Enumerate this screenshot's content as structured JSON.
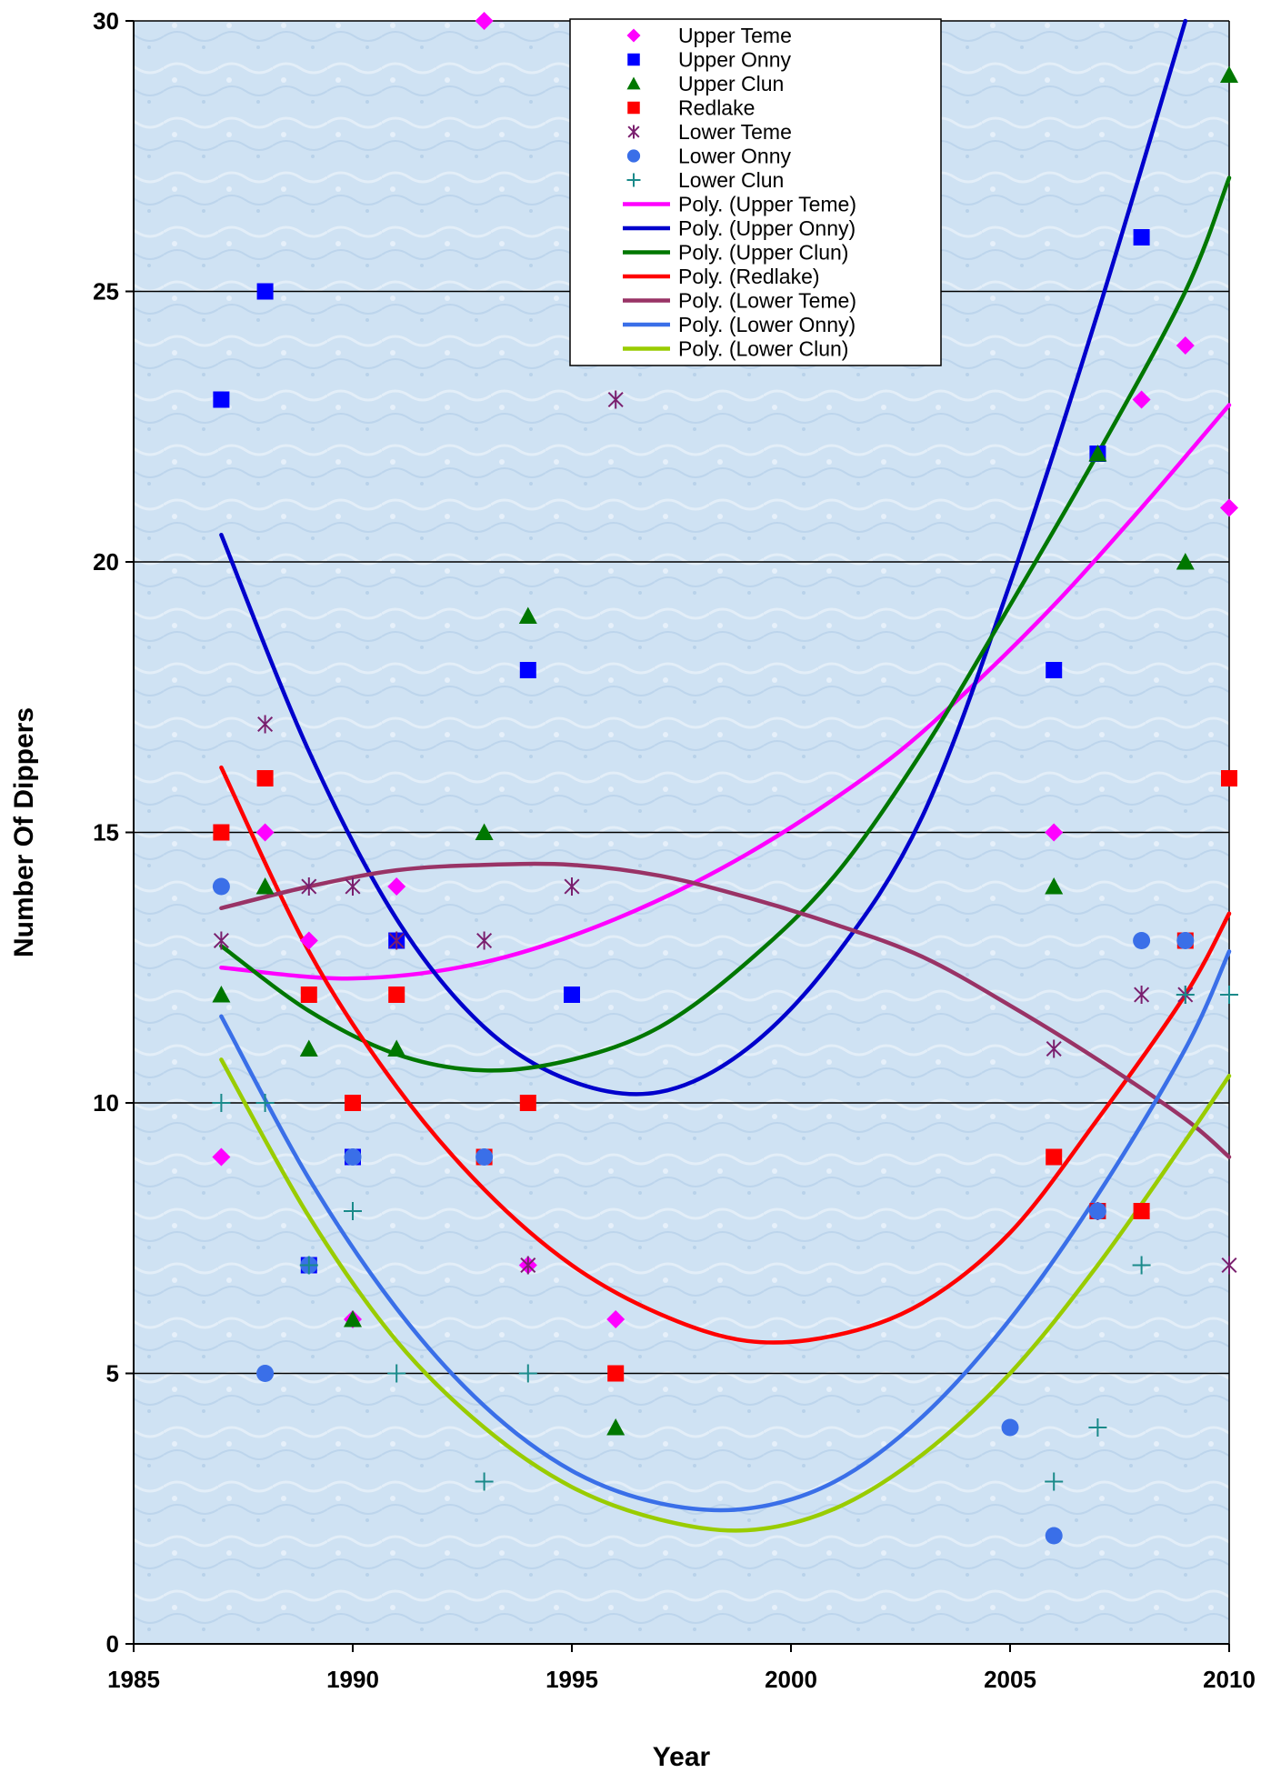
{
  "chart_data": {
    "type": "scatter",
    "title": "",
    "xlabel": "Year",
    "ylabel": "Number Of Dippers",
    "xlim": [
      1985,
      2010
    ],
    "ylim": [
      0,
      30
    ],
    "x_ticks": [
      1985,
      1990,
      1995,
      2000,
      2005,
      2010
    ],
    "y_ticks": [
      0,
      5,
      10,
      15,
      20,
      25,
      30
    ],
    "grid": "horizontal major gridlines",
    "legend_position": "top-center",
    "plot_background": "light blue textured",
    "series": [
      {
        "name": "Upper Teme",
        "marker": "diamond",
        "color": "#ff00ff",
        "points": [
          [
            1987,
            9
          ],
          [
            1988,
            15
          ],
          [
            1989,
            13
          ],
          [
            1990,
            6
          ],
          [
            1991,
            14
          ],
          [
            1993,
            30
          ],
          [
            1994,
            7
          ],
          [
            1996,
            6
          ],
          [
            2006,
            15
          ],
          [
            2008,
            23
          ],
          [
            2009,
            24
          ],
          [
            2010,
            21
          ]
        ]
      },
      {
        "name": "Upper Onny",
        "marker": "square",
        "color": "#0000ff",
        "points": [
          [
            1987,
            23
          ],
          [
            1988,
            25
          ],
          [
            1989,
            7
          ],
          [
            1990,
            9
          ],
          [
            1991,
            13
          ],
          [
            1994,
            18
          ],
          [
            1995,
            12
          ],
          [
            2006,
            18
          ],
          [
            2007,
            22
          ],
          [
            2008,
            26
          ]
        ]
      },
      {
        "name": "Upper Clun",
        "marker": "triangle",
        "color": "#007700",
        "points": [
          [
            1987,
            12
          ],
          [
            1988,
            14
          ],
          [
            1989,
            11
          ],
          [
            1990,
            6
          ],
          [
            1991,
            11
          ],
          [
            1993,
            15
          ],
          [
            1994,
            19
          ],
          [
            1996,
            4
          ],
          [
            2006,
            14
          ],
          [
            2007,
            22
          ],
          [
            2009,
            20
          ],
          [
            2010,
            29
          ]
        ]
      },
      {
        "name": "Redlake",
        "marker": "square",
        "color": "#ff0000",
        "points": [
          [
            1987,
            15
          ],
          [
            1988,
            16
          ],
          [
            1989,
            12
          ],
          [
            1990,
            10
          ],
          [
            1991,
            12
          ],
          [
            1993,
            9
          ],
          [
            1994,
            10
          ],
          [
            1996,
            5
          ],
          [
            2006,
            9
          ],
          [
            2007,
            8
          ],
          [
            2008,
            8
          ],
          [
            2009,
            13
          ],
          [
            2010,
            16
          ]
        ]
      },
      {
        "name": "Lower Teme",
        "marker": "asterisk",
        "color": "#7a1f6e",
        "points": [
          [
            1987,
            13
          ],
          [
            1988,
            17
          ],
          [
            1989,
            14
          ],
          [
            1990,
            14
          ],
          [
            1991,
            13
          ],
          [
            1993,
            13
          ],
          [
            1994,
            7
          ],
          [
            1995,
            14
          ],
          [
            1996,
            23
          ],
          [
            2006,
            11
          ],
          [
            2007,
            8
          ],
          [
            2008,
            12
          ],
          [
            2009,
            12
          ],
          [
            2010,
            7
          ]
        ]
      },
      {
        "name": "Lower Onny",
        "marker": "circle",
        "color": "#3a6fe8",
        "points": [
          [
            1987,
            14
          ],
          [
            1988,
            5
          ],
          [
            1989,
            7
          ],
          [
            1990,
            9
          ],
          [
            1993,
            9
          ],
          [
            2005,
            4
          ],
          [
            2006,
            2
          ],
          [
            2007,
            8
          ],
          [
            2008,
            13
          ],
          [
            2009,
            13
          ]
        ]
      },
      {
        "name": "Lower Clun",
        "marker": "plus",
        "color": "#1a8a8a",
        "points": [
          [
            1987,
            10
          ],
          [
            1988,
            10
          ],
          [
            1989,
            7
          ],
          [
            1990,
            8
          ],
          [
            1991,
            5
          ],
          [
            1993,
            3
          ],
          [
            1994,
            5
          ],
          [
            2006,
            3
          ],
          [
            2007,
            4
          ],
          [
            2008,
            7
          ],
          [
            2009,
            12
          ],
          [
            2010,
            12
          ]
        ]
      }
    ],
    "trendlines": [
      {
        "name": "Poly. (Upper Teme)",
        "color": "#ff00ff",
        "points": [
          [
            1987,
            12.5
          ],
          [
            1990,
            12.3
          ],
          [
            1993,
            12.6
          ],
          [
            1996,
            13.4
          ],
          [
            1999,
            14.6
          ],
          [
            2002,
            16.2
          ],
          [
            2004,
            17.6
          ],
          [
            2006,
            19.2
          ],
          [
            2008,
            21.0
          ],
          [
            2010,
            22.9
          ]
        ]
      },
      {
        "name": "Poly. (Upper Onny)",
        "color": "#0000cc",
        "points": [
          [
            1987,
            20.5
          ],
          [
            1989,
            16.5
          ],
          [
            1991,
            13.4
          ],
          [
            1993,
            11.4
          ],
          [
            1995,
            10.4
          ],
          [
            1997,
            10.2
          ],
          [
            1999,
            11.0
          ],
          [
            2001,
            12.7
          ],
          [
            2003,
            15.3
          ],
          [
            2005,
            19.6
          ],
          [
            2007,
            24.6
          ],
          [
            2009,
            30.0
          ]
        ]
      },
      {
        "name": "Poly. (Upper Clun)",
        "color": "#007700",
        "points": [
          [
            1987,
            12.9
          ],
          [
            1989,
            11.7
          ],
          [
            1991,
            10.9
          ],
          [
            1993,
            10.6
          ],
          [
            1995,
            10.8
          ],
          [
            1997,
            11.4
          ],
          [
            1999,
            12.6
          ],
          [
            2001,
            14.2
          ],
          [
            2003,
            16.5
          ],
          [
            2005,
            19.2
          ],
          [
            2007,
            22.0
          ],
          [
            2009,
            25.0
          ],
          [
            2010,
            27.1
          ]
        ]
      },
      {
        "name": "Poly. (Redlake)",
        "color": "#ff0000",
        "points": [
          [
            1987,
            16.2
          ],
          [
            1989,
            12.8
          ],
          [
            1991,
            10.3
          ],
          [
            1993,
            8.4
          ],
          [
            1995,
            7.0
          ],
          [
            1997,
            6.1
          ],
          [
            1999,
            5.6
          ],
          [
            2001,
            5.7
          ],
          [
            2003,
            6.3
          ],
          [
            2005,
            7.6
          ],
          [
            2007,
            9.7
          ],
          [
            2009,
            12.0
          ],
          [
            2010,
            13.5
          ]
        ]
      },
      {
        "name": "Poly. (Lower Teme)",
        "color": "#993366",
        "points": [
          [
            1987,
            13.6
          ],
          [
            1989,
            14.0
          ],
          [
            1991,
            14.3
          ],
          [
            1993,
            14.4
          ],
          [
            1995,
            14.4
          ],
          [
            1997,
            14.2
          ],
          [
            1999,
            13.8
          ],
          [
            2001,
            13.3
          ],
          [
            2003,
            12.7
          ],
          [
            2005,
            11.8
          ],
          [
            2007,
            10.8
          ],
          [
            2009,
            9.7
          ],
          [
            2010,
            9.0
          ]
        ]
      },
      {
        "name": "Poly. (Lower Onny)",
        "color": "#3a6fe8",
        "points": [
          [
            1987,
            11.6
          ],
          [
            1989,
            8.6
          ],
          [
            1991,
            6.2
          ],
          [
            1993,
            4.4
          ],
          [
            1995,
            3.2
          ],
          [
            1997,
            2.6
          ],
          [
            1999,
            2.5
          ],
          [
            2001,
            3.0
          ],
          [
            2003,
            4.2
          ],
          [
            2005,
            6.0
          ],
          [
            2007,
            8.3
          ],
          [
            2009,
            11.0
          ],
          [
            2010,
            12.8
          ]
        ]
      },
      {
        "name": "Poly. (Lower Clun)",
        "color": "#99cc00",
        "points": [
          [
            1987,
            10.8
          ],
          [
            1989,
            7.9
          ],
          [
            1991,
            5.6
          ],
          [
            1993,
            4.0
          ],
          [
            1995,
            2.9
          ],
          [
            1997,
            2.3
          ],
          [
            1999,
            2.1
          ],
          [
            2001,
            2.5
          ],
          [
            2003,
            3.5
          ],
          [
            2005,
            5.0
          ],
          [
            2007,
            7.0
          ],
          [
            2009,
            9.3
          ],
          [
            2010,
            10.5
          ]
        ]
      }
    ]
  }
}
